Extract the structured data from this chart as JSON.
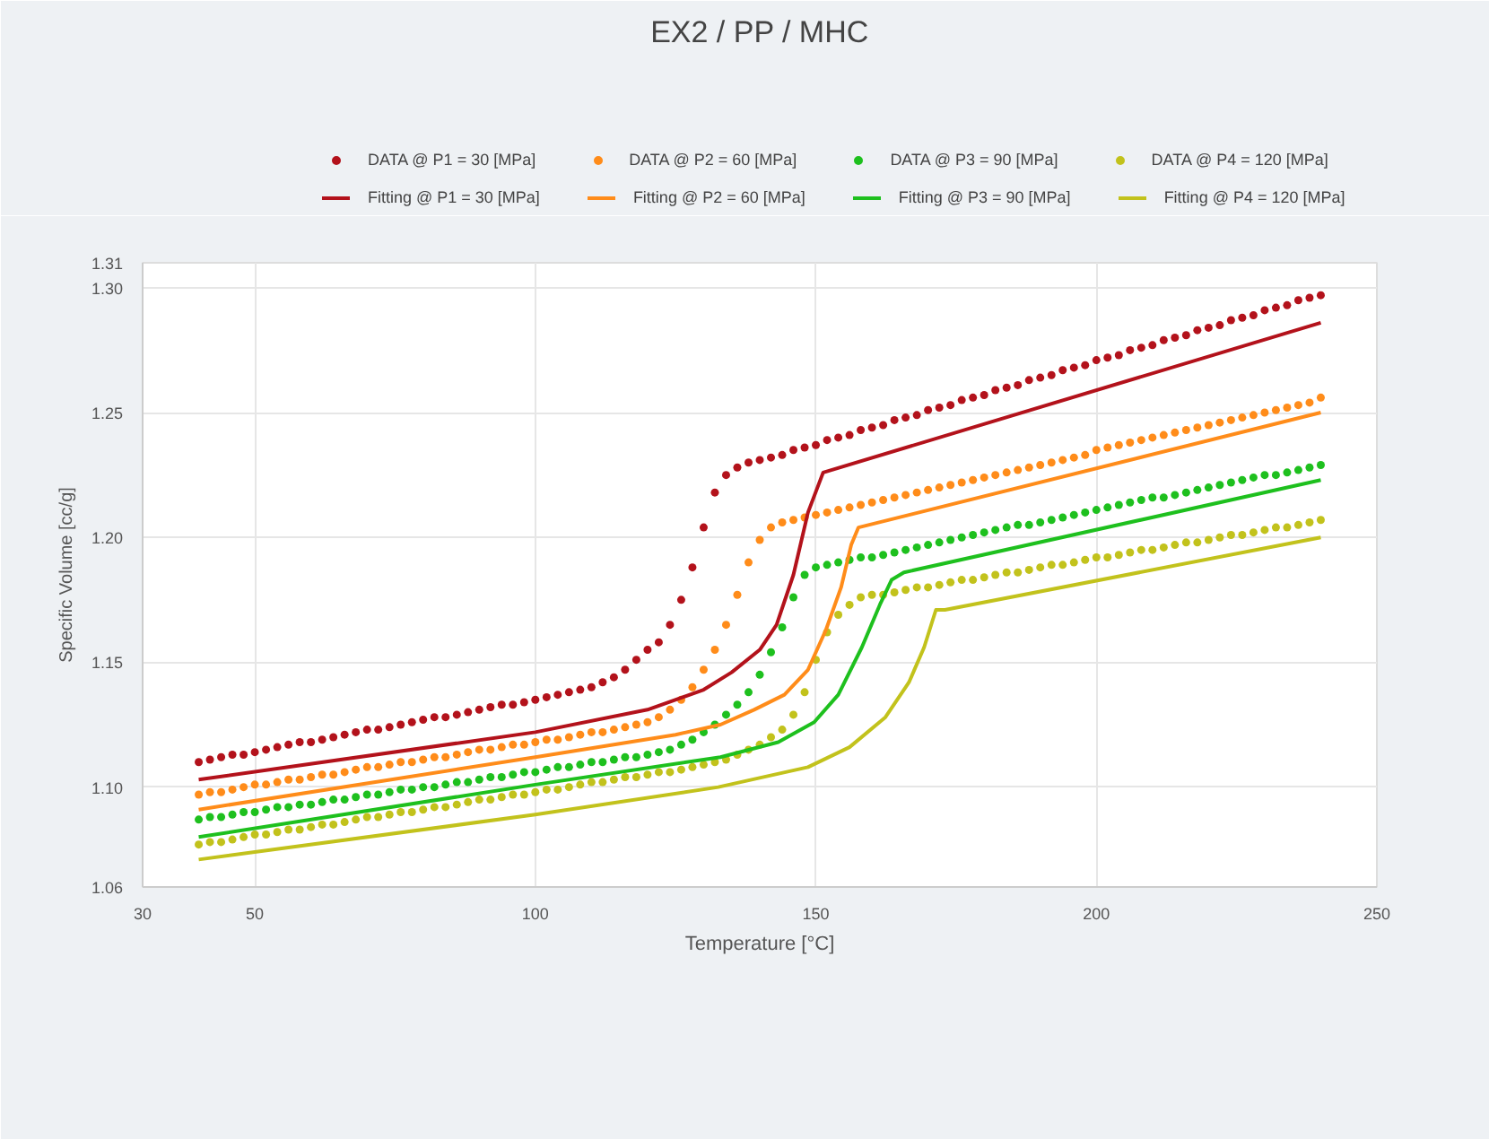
{
  "chart_data": {
    "type": "scatter",
    "title": "EX2 / PP / MHC",
    "xlabel": "Temperature [°C]",
    "ylabel": "Specific Volume [cc/g]",
    "xlim": [
      30,
      250
    ],
    "xticks": [
      30,
      50,
      100,
      150,
      200,
      250
    ],
    "ylim": [
      1.06,
      1.31
    ],
    "yticks": [
      1.06,
      {
        "value": 1.1,
        "label": "1.10"
      },
      1.15,
      {
        "value": 1.2,
        "label": "1.20"
      },
      1.25,
      {
        "value": 1.3,
        "label": "1.30"
      },
      1.31
    ],
    "grid": true,
    "legend": "top",
    "line_style": "solid",
    "x": [
      40,
      42,
      44,
      46,
      48,
      50,
      52,
      54,
      56,
      58,
      60,
      62,
      64,
      66,
      68,
      70,
      72,
      74,
      76,
      78,
      80,
      82,
      84,
      86,
      88,
      90,
      92,
      94,
      96,
      98,
      100,
      102,
      104,
      106,
      108,
      110,
      112,
      114,
      116,
      118,
      120,
      122,
      124,
      126,
      128,
      130,
      132,
      134,
      136,
      138,
      140,
      142,
      144,
      146,
      148,
      150,
      152,
      154,
      156,
      158,
      160,
      162,
      164,
      166,
      168,
      170,
      172,
      174,
      176,
      178,
      180,
      182,
      184,
      186,
      188,
      190,
      192,
      194,
      196,
      198,
      200,
      202,
      204,
      206,
      208,
      210,
      212,
      214,
      216,
      218,
      220,
      222,
      224,
      226,
      228,
      230,
      232,
      234,
      236,
      238,
      240
    ],
    "series": [
      {
        "name": "DATA @ P1 = 30 [MPa]",
        "marker": "circle",
        "color": "#b3121b",
        "values": [
          1.11,
          1.111,
          1.112,
          1.113,
          1.113,
          1.114,
          1.115,
          1.116,
          1.117,
          1.118,
          1.118,
          1.119,
          1.12,
          1.121,
          1.122,
          1.123,
          1.123,
          1.124,
          1.125,
          1.126,
          1.127,
          1.128,
          1.128,
          1.129,
          1.13,
          1.131,
          1.132,
          1.133,
          1.133,
          1.134,
          1.135,
          1.136,
          1.137,
          1.138,
          1.139,
          1.14,
          1.142,
          1.144,
          1.147,
          1.151,
          1.155,
          1.158,
          1.165,
          1.175,
          1.188,
          1.204,
          1.218,
          1.225,
          1.228,
          1.23,
          1.231,
          1.232,
          1.233,
          1.235,
          1.236,
          1.237,
          1.239,
          1.24,
          1.241,
          1.243,
          1.244,
          1.245,
          1.247,
          1.248,
          1.249,
          1.251,
          1.252,
          1.253,
          1.255,
          1.256,
          1.257,
          1.259,
          1.26,
          1.261,
          1.263,
          1.264,
          1.265,
          1.267,
          1.268,
          1.269,
          1.271,
          1.272,
          1.273,
          1.275,
          1.276,
          1.277,
          1.279,
          1.28,
          1.281,
          1.283,
          1.284,
          1.285,
          1.287,
          1.288,
          1.289,
          1.291,
          1.292,
          1.293,
          1.295,
          1.296,
          1.297
        ]
      },
      {
        "name": "DATA @ P2 = 60 [MPa]",
        "marker": "circle",
        "color": "#ff8c1a",
        "values": [
          1.097,
          1.098,
          1.098,
          1.099,
          1.1,
          1.101,
          1.101,
          1.102,
          1.103,
          1.103,
          1.104,
          1.105,
          1.105,
          1.106,
          1.107,
          1.108,
          1.108,
          1.109,
          1.11,
          1.11,
          1.111,
          1.112,
          1.112,
          1.113,
          1.114,
          1.115,
          1.115,
          1.116,
          1.117,
          1.117,
          1.118,
          1.119,
          1.119,
          1.12,
          1.121,
          1.122,
          1.122,
          1.123,
          1.124,
          1.125,
          1.126,
          1.128,
          1.131,
          1.135,
          1.14,
          1.147,
          1.155,
          1.165,
          1.177,
          1.19,
          1.199,
          1.204,
          1.206,
          1.207,
          1.208,
          1.209,
          1.21,
          1.211,
          1.212,
          1.213,
          1.214,
          1.215,
          1.216,
          1.217,
          1.218,
          1.219,
          1.22,
          1.221,
          1.222,
          1.223,
          1.224,
          1.225,
          1.226,
          1.227,
          1.228,
          1.229,
          1.23,
          1.231,
          1.232,
          1.233,
          1.235,
          1.236,
          1.237,
          1.238,
          1.239,
          1.24,
          1.241,
          1.242,
          1.243,
          1.244,
          1.245,
          1.246,
          1.247,
          1.248,
          1.249,
          1.25,
          1.251,
          1.252,
          1.253,
          1.254,
          1.256
        ]
      },
      {
        "name": "DATA @ P3 = 90 [MPa]",
        "marker": "circle",
        "color": "#1ec01e",
        "values": [
          1.087,
          1.088,
          1.088,
          1.089,
          1.09,
          1.09,
          1.091,
          1.092,
          1.092,
          1.093,
          1.093,
          1.094,
          1.095,
          1.095,
          1.096,
          1.097,
          1.097,
          1.098,
          1.099,
          1.099,
          1.1,
          1.1,
          1.101,
          1.102,
          1.102,
          1.103,
          1.104,
          1.104,
          1.105,
          1.106,
          1.106,
          1.107,
          1.108,
          1.108,
          1.109,
          1.11,
          1.11,
          1.111,
          1.112,
          1.112,
          1.113,
          1.114,
          1.115,
          1.117,
          1.119,
          1.122,
          1.125,
          1.129,
          1.133,
          1.138,
          1.145,
          1.154,
          1.164,
          1.176,
          1.185,
          1.188,
          1.189,
          1.19,
          1.191,
          1.192,
          1.192,
          1.193,
          1.194,
          1.195,
          1.196,
          1.197,
          1.198,
          1.199,
          1.2,
          1.201,
          1.202,
          1.203,
          1.204,
          1.205,
          1.205,
          1.206,
          1.207,
          1.208,
          1.209,
          1.21,
          1.211,
          1.212,
          1.213,
          1.214,
          1.215,
          1.216,
          1.216,
          1.217,
          1.218,
          1.219,
          1.22,
          1.221,
          1.222,
          1.223,
          1.224,
          1.225,
          1.225,
          1.226,
          1.227,
          1.228,
          1.229
        ]
      },
      {
        "name": "DATA @ P4 = 120 [MPa]",
        "marker": "circle",
        "color": "#c2c21c",
        "values": [
          1.077,
          1.078,
          1.078,
          1.079,
          1.08,
          1.081,
          1.081,
          1.082,
          1.083,
          1.083,
          1.084,
          1.085,
          1.085,
          1.086,
          1.087,
          1.088,
          1.088,
          1.089,
          1.09,
          1.09,
          1.091,
          1.092,
          1.092,
          1.093,
          1.094,
          1.095,
          1.095,
          1.096,
          1.097,
          1.097,
          1.098,
          1.099,
          1.099,
          1.1,
          1.101,
          1.102,
          1.102,
          1.103,
          1.104,
          1.104,
          1.105,
          1.106,
          1.106,
          1.107,
          1.108,
          1.109,
          1.11,
          1.111,
          1.113,
          1.115,
          1.117,
          1.12,
          1.123,
          1.129,
          1.138,
          1.151,
          1.162,
          1.169,
          1.173,
          1.176,
          1.177,
          1.177,
          1.178,
          1.179,
          1.18,
          1.18,
          1.181,
          1.182,
          1.183,
          1.183,
          1.184,
          1.185,
          1.186,
          1.186,
          1.187,
          1.188,
          1.189,
          1.189,
          1.19,
          1.191,
          1.192,
          1.192,
          1.193,
          1.194,
          1.195,
          1.195,
          1.196,
          1.197,
          1.198,
          1.198,
          1.199,
          1.2,
          1.201,
          1.201,
          1.202,
          1.203,
          1.204,
          1.204,
          1.205,
          1.206,
          1.207
        ]
      },
      {
        "name": "Fitting @ P1 = 30 [MPa]",
        "type": "line",
        "color": "#b3121b",
        "x": [
          40,
          100,
          120,
          130,
          135,
          140,
          143,
          146,
          148.6,
          151.3,
          240
        ],
        "values": [
          1.103,
          1.122,
          1.131,
          1.139,
          1.146,
          1.155,
          1.165,
          1.185,
          1.21,
          1.226,
          1.286
        ]
      },
      {
        "name": "Fitting @ P2 = 60 [MPa]",
        "type": "line",
        "color": "#ff8c1a",
        "x": [
          40,
          100,
          125,
          133,
          139,
          144.4,
          148.6,
          151.8,
          154.5,
          156.3,
          157.6,
          240
        ],
        "values": [
          1.091,
          1.112,
          1.121,
          1.125,
          1.131,
          1.137,
          1.147,
          1.163,
          1.18,
          1.197,
          1.204,
          1.25
        ]
      },
      {
        "name": "Fitting @ P3 = 90 [MPa]",
        "type": "line",
        "color": "#1ec01e",
        "x": [
          40,
          100,
          133,
          143.3,
          149.7,
          154,
          158.2,
          161.4,
          163.5,
          165.7,
          240
        ],
        "values": [
          1.08,
          1.101,
          1.112,
          1.118,
          1.126,
          1.137,
          1.156,
          1.173,
          1.183,
          1.186,
          1.223
        ]
      },
      {
        "name": "Fitting @ P4 = 120 [MPa]",
        "type": "line",
        "color": "#c2c21c",
        "x": [
          40,
          100,
          132.6,
          148.6,
          156,
          162.4,
          166.6,
          169.3,
          171.4,
          173,
          240
        ],
        "values": [
          1.071,
          1.089,
          1.1,
          1.108,
          1.116,
          1.128,
          1.142,
          1.156,
          1.171,
          1.171,
          1.2
        ]
      }
    ]
  }
}
